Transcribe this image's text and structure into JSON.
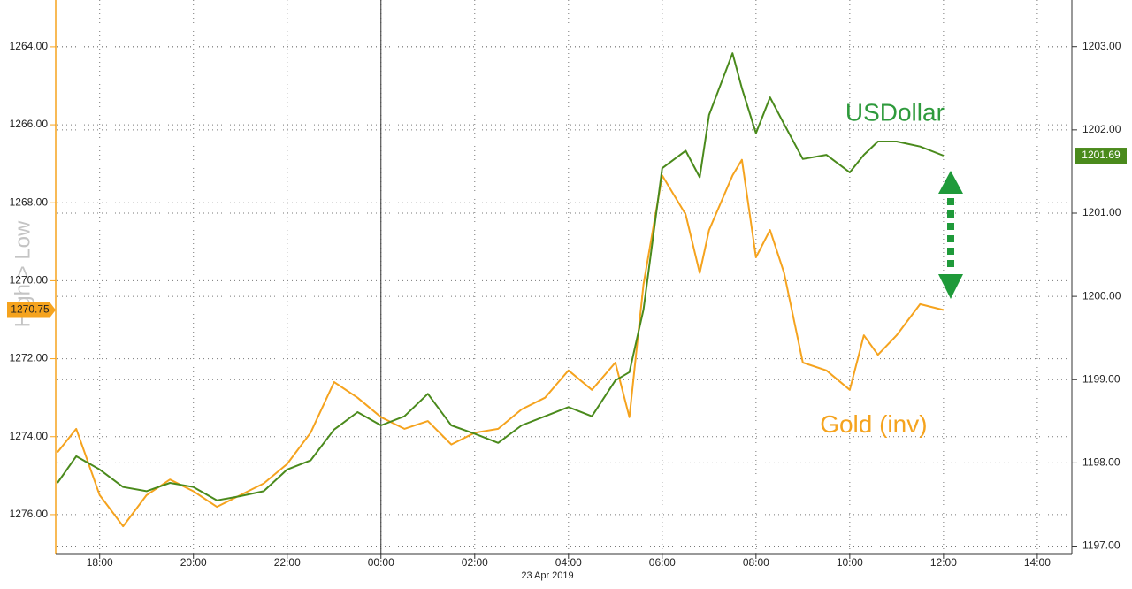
{
  "chart_data": {
    "type": "line",
    "ylabel": "High > Low",
    "xlabel": "23 Apr 2019",
    "x": [
      17.1,
      17.5,
      18.0,
      18.5,
      19.0,
      19.5,
      20.0,
      20.5,
      21.0,
      21.5,
      22.0,
      22.5,
      23.0,
      23.5,
      24.0,
      24.5,
      25.0,
      25.5,
      26.0,
      26.5,
      27.0,
      27.5,
      28.0,
      28.5,
      29.0,
      29.3,
      29.6,
      30.0,
      30.5,
      30.8,
      31.0,
      31.5,
      31.7,
      32.0,
      32.3,
      32.6,
      33.0,
      33.5,
      34.0,
      34.3,
      34.6,
      35.0,
      35.5,
      36.0
    ],
    "xlim": [
      17.1,
      38.7
    ],
    "xticks": [
      {
        "value": 18,
        "label": "18:00"
      },
      {
        "value": 20,
        "label": "20:00"
      },
      {
        "value": 22,
        "label": "22:00"
      },
      {
        "value": 24,
        "label": "00:00"
      },
      {
        "value": 26,
        "label": "02:00"
      },
      {
        "value": 28,
        "label": "04:00"
      },
      {
        "value": 30,
        "label": "06:00"
      },
      {
        "value": 32,
        "label": "08:00"
      },
      {
        "value": 34,
        "label": "10:00"
      },
      {
        "value": 36,
        "label": "12:00"
      },
      {
        "value": 38,
        "label": "14:00"
      }
    ],
    "day_start": 24,
    "ylim": [
      1277.0,
      1262.8
    ],
    "yticks": [
      {
        "value": 1264,
        "label": "1264.00"
      },
      {
        "value": 1266,
        "label": "1266.00"
      },
      {
        "value": 1268,
        "label": "1268.00"
      },
      {
        "value": 1270,
        "label": "1270.00"
      },
      {
        "value": 1272,
        "label": "1272.00"
      },
      {
        "value": 1274,
        "label": "1274.00"
      },
      {
        "value": 1276,
        "label": "1276.00"
      }
    ],
    "y2lim": [
      1196.91,
      1203.56
    ],
    "y2ticks": [
      {
        "value": 1197,
        "label": "1197.00"
      },
      {
        "value": 1198,
        "label": "1198.00"
      },
      {
        "value": 1199,
        "label": "1199.00"
      },
      {
        "value": 1200,
        "label": "1200.00"
      },
      {
        "value": 1201,
        "label": "1201.00"
      },
      {
        "value": 1202,
        "label": "1202.00"
      },
      {
        "value": 1203,
        "label": "1203.00"
      }
    ],
    "grid": true,
    "series": [
      {
        "name": "Gold (inv)",
        "color": "#f5a31e",
        "axis": "y",
        "values": [
          1274.4,
          1273.8,
          1275.5,
          1276.3,
          1275.5,
          1275.1,
          1275.4,
          1275.8,
          1275.5,
          1275.2,
          1274.7,
          1273.9,
          1272.6,
          1273.0,
          1273.5,
          1273.8,
          1273.6,
          1274.2,
          1273.9,
          1273.8,
          1273.3,
          1273.0,
          1272.3,
          1272.8,
          1272.1,
          1273.5,
          1270.1,
          1267.3,
          1268.3,
          1269.8,
          1268.7,
          1267.3,
          1266.9,
          1269.4,
          1268.7,
          1269.8,
          1272.1,
          1272.3,
          1272.8,
          1271.4,
          1271.9,
          1271.4,
          1270.6,
          1270.75
        ],
        "current": {
          "value": 1270.75,
          "label": "1270.75"
        }
      },
      {
        "name": "USDollar",
        "color": "#4a8a1c",
        "axis": "y2",
        "values": [
          1197.76,
          1198.08,
          1197.92,
          1197.71,
          1197.66,
          1197.76,
          1197.71,
          1197.55,
          1197.6,
          1197.66,
          1197.92,
          1198.03,
          1198.4,
          1198.61,
          1198.45,
          1198.56,
          1198.83,
          1198.45,
          1198.35,
          1198.24,
          1198.45,
          1198.56,
          1198.67,
          1198.56,
          1198.99,
          1199.09,
          1199.84,
          1201.54,
          1201.75,
          1201.43,
          1202.18,
          1202.92,
          1202.5,
          1201.96,
          1202.39,
          1202.07,
          1201.65,
          1201.7,
          1201.49,
          1201.7,
          1201.86,
          1201.86,
          1201.8,
          1201.69
        ],
        "current": {
          "value": 1201.69,
          "label": "1201.69"
        }
      }
    ]
  }
}
